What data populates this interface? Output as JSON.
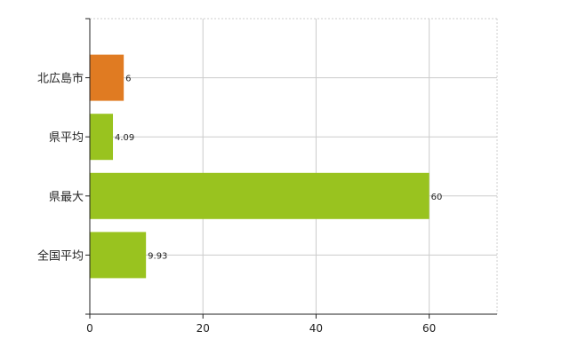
{
  "chart_data": {
    "type": "bar",
    "orientation": "horizontal",
    "categories": [
      "北広島市",
      "県平均",
      "県最大",
      "全国平均"
    ],
    "values": [
      6,
      4.09,
      60,
      9.93
    ],
    "value_labels": [
      "6",
      "4.09",
      "60",
      "9.93"
    ],
    "colors": [
      "#e07b22",
      "#99c31f",
      "#99c31f",
      "#99c31f"
    ],
    "xlim": [
      0,
      72
    ],
    "xticks": [
      0,
      20,
      40,
      60
    ],
    "xtick_labels": [
      "0",
      "20",
      "40",
      "60"
    ],
    "grid": true,
    "legend": "none"
  }
}
